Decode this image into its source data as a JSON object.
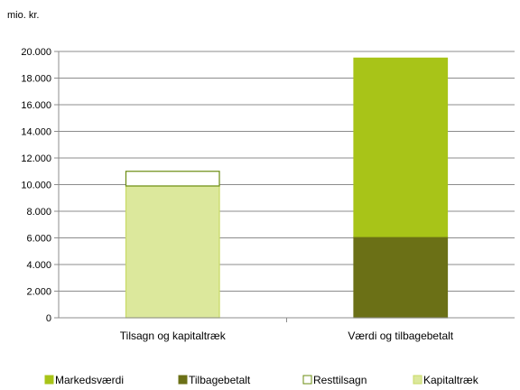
{
  "chart_data": {
    "type": "bar",
    "stacked": true,
    "y_unit_label": "mio. kr.",
    "categories": [
      "Tilsagn og kapitaltræk",
      "Værdi og tilbagebetalt"
    ],
    "ylim": [
      0,
      20000
    ],
    "yticks": [
      0,
      2000,
      4000,
      6000,
      8000,
      10000,
      12000,
      14000,
      16000,
      18000,
      20000
    ],
    "ytick_labels": [
      "0",
      "2.000",
      "4.000",
      "6.000",
      "8.000",
      "10.000",
      "12.000",
      "14.000",
      "16.000",
      "18.000",
      "20.000"
    ],
    "grid": true,
    "legend_position": "bottom",
    "series": [
      {
        "name": "Markedsværdi",
        "color": "#a8c418",
        "outline": "#a8c418",
        "values": [
          0,
          13400
        ]
      },
      {
        "name": "Tilbagebetalt",
        "color": "#6b7016",
        "outline": "#6b7016",
        "values": [
          0,
          6100
        ]
      },
      {
        "name": "Resttilsagn",
        "color": "#ffffff",
        "outline": "#6b8c10",
        "values": [
          1100,
          0
        ]
      },
      {
        "name": "Kapitaltræk",
        "color": "#dce89c",
        "outline": "#c8da64",
        "values": [
          9900,
          0
        ]
      }
    ],
    "stack_order": [
      "Kapitaltræk",
      "Tilbagebetalt",
      "Resttilsagn",
      "Markedsværdi"
    ]
  }
}
